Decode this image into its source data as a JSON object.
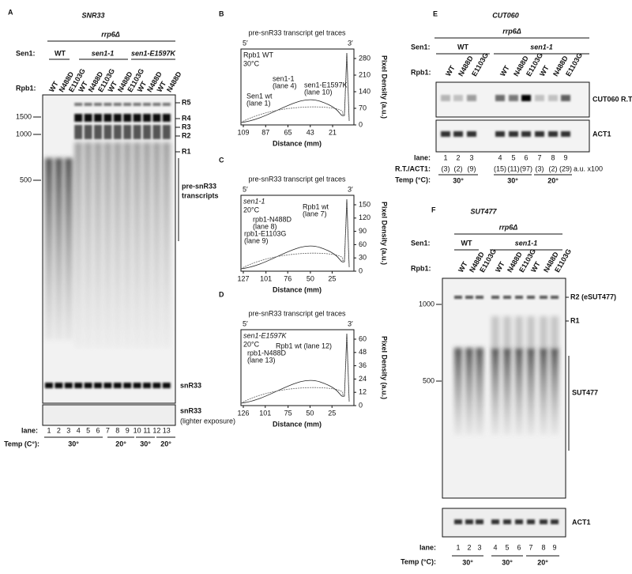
{
  "panels": {
    "A": {
      "letter": "A",
      "title": "SNR33",
      "strain": "rrp6Δ",
      "sen1_label": "Sen1:",
      "sen1_groups": [
        "WT",
        "sen1-1",
        "sen1-E1597K"
      ],
      "rpb1_label": "Rpb1:",
      "rpb1": [
        "WT",
        "N488D",
        "E1103G",
        "WT",
        "N488D",
        "E1103G",
        "WT",
        "N488D",
        "E1103G",
        "WT",
        "N488D",
        "WT",
        "N488D"
      ],
      "markers": [
        1500,
        1000,
        500
      ],
      "bands": [
        "R5",
        "R4",
        "R3",
        "R2",
        "R1"
      ],
      "pre_label": [
        "pre-snR33",
        "transcripts"
      ],
      "product": "snR33",
      "product_light": "snR33",
      "light_note": "(lighter exposure)",
      "lane_label": "lane:",
      "lanes": [
        1,
        2,
        3,
        4,
        5,
        6,
        7,
        8,
        9,
        10,
        11,
        12,
        13
      ],
      "temp_label": "Temp (C°):",
      "temps": [
        "30°",
        "20°",
        "30°",
        "20°"
      ]
    },
    "B": {
      "letter": "B",
      "title": "pre-snR33 transcript gel traces",
      "end5": "5′",
      "end3": "3′",
      "strain": "Rpb1 WT",
      "temp": "30°C",
      "notes": [
        "Sen1 wt",
        "(lane 1)",
        "sen1-1",
        "(lane 4)",
        "sen1-E1597K",
        "(lane 10)"
      ],
      "xticks": [
        109,
        87,
        65,
        43,
        21
      ],
      "yticks": [
        0,
        70,
        140,
        210,
        280
      ],
      "xlabel": "Distance (mm)",
      "ylabel": "Pixel Density (a.u.)"
    },
    "C": {
      "letter": "C",
      "title": "pre-snR33 transcript gel traces",
      "end5": "5′",
      "end3": "3′",
      "strain": "sen1-1",
      "temp": "20°C",
      "notes": [
        "Rpb1 wt",
        "(lane 7)",
        "rpb1-N488D",
        "(lane 8)",
        "rpb1-E1103G",
        "(lane 9)"
      ],
      "xticks": [
        127,
        101,
        76,
        50,
        25
      ],
      "yticks": [
        0,
        30,
        60,
        90,
        120,
        150
      ],
      "xlabel": "Distance (mm)",
      "ylabel": "Pixel Density (a.u.)"
    },
    "D": {
      "letter": "D",
      "title": "pre-snR33 transcript gel traces",
      "end5": "5′",
      "end3": "3′",
      "strain": "sen1-E1597K",
      "temp": "20°C",
      "notes": [
        "Rpb1 wt (lane 12)",
        "rpb1-N488D",
        "(lane 13)"
      ],
      "xticks": [
        126,
        101,
        75,
        50,
        25
      ],
      "yticks": [
        0,
        12,
        24,
        36,
        48,
        60
      ],
      "xlabel": "Distance (mm)",
      "ylabel": "Pixel Density (a.u.)"
    },
    "E": {
      "letter": "E",
      "title": "CUT060",
      "strain": "rrp6Δ",
      "sen1_label": "Sen1:",
      "sen1_groups": [
        "WT",
        "sen1-1"
      ],
      "rpb1_label": "Rpb1:",
      "rpb1": [
        "WT",
        "N488D",
        "E1103G",
        "WT",
        "N488D",
        "E1103G",
        "WT",
        "N488D",
        "E1103G"
      ],
      "blot1": "CUT060 R.T.",
      "blot2": "ACT1",
      "lane_label": "lane:",
      "lanes": [
        1,
        2,
        3,
        4,
        5,
        6,
        7,
        8,
        9
      ],
      "ratio_label": "R.T./ACT1:",
      "ratios": [
        "(3)",
        "(2)",
        "(9)",
        "(15)",
        "(11)",
        "(97)",
        "(3)",
        "(2)",
        "(29)"
      ],
      "ratio_unit": "a.u. x100",
      "temp_label": "Temp (°C):",
      "temps": [
        "30°",
        "30°",
        "20°"
      ]
    },
    "F": {
      "letter": "F",
      "title": "SUT477",
      "strain": "rrp6Δ",
      "sen1_label": "Sen1:",
      "sen1_groups": [
        "WT",
        "sen1-1"
      ],
      "rpb1_label": "Rpb1:",
      "rpb1": [
        "WT",
        "N488D",
        "E1103G",
        "WT",
        "N488D",
        "E1103G",
        "WT",
        "N488D",
        "E1103G"
      ],
      "markers": [
        1000,
        500
      ],
      "bands": [
        "R2 (eSUT477)",
        "R1"
      ],
      "product": "SUT477",
      "blot2": "ACT1",
      "lane_label": "lane:",
      "lanes": [
        1,
        2,
        3,
        4,
        5,
        6,
        7,
        8,
        9
      ],
      "temp_label": "Temp (°C):",
      "temps": [
        "30°",
        "30°",
        "20°"
      ]
    }
  }
}
